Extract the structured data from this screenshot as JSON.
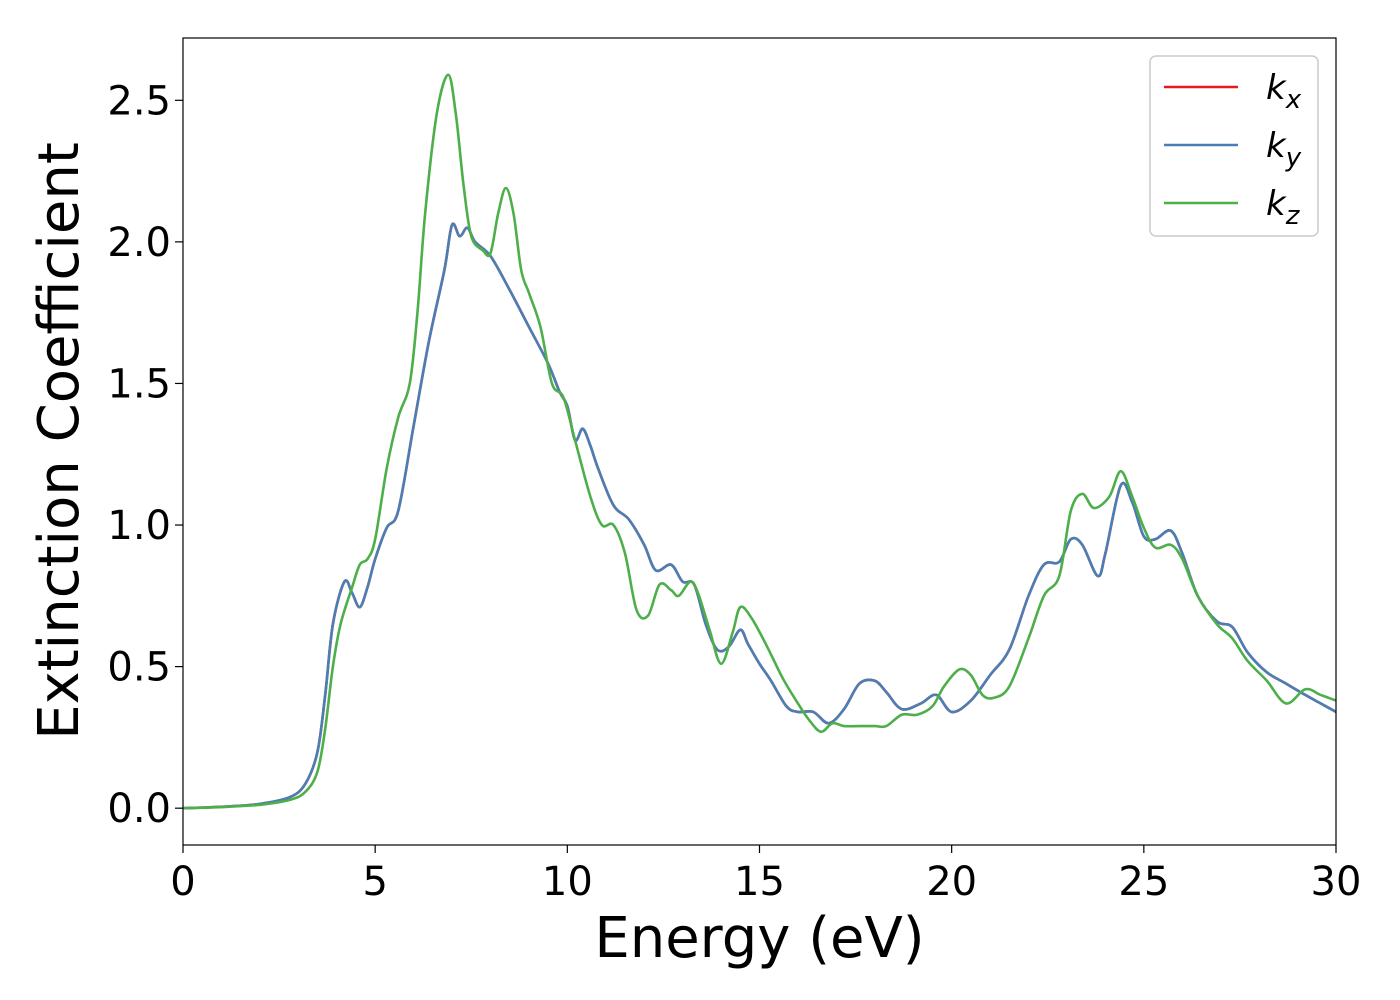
{
  "chart_data": {
    "type": "line",
    "xlabel": "Energy (eV)",
    "ylabel": "Extinction Coefficient",
    "xlim": [
      0,
      30
    ],
    "ylim": [
      -0.13,
      2.72
    ],
    "xticks": [
      0,
      5,
      10,
      15,
      20,
      25,
      30
    ],
    "yticks": [
      0.0,
      0.5,
      1.0,
      1.5,
      2.0,
      2.5
    ],
    "xtick_labels": [
      "0",
      "5",
      "10",
      "15",
      "20",
      "25",
      "30"
    ],
    "ytick_labels": [
      "0.0",
      "0.5",
      "1.0",
      "1.5",
      "2.0",
      "2.5"
    ],
    "grid": false,
    "legend": "top-right",
    "series": [
      {
        "name": "k_x",
        "label_base": "k",
        "label_sub": "x",
        "color": "#e41a1c",
        "points": [
          [
            0,
            0
          ],
          [
            1,
            0.005
          ],
          [
            2,
            0.015
          ],
          [
            2.8,
            0.04
          ],
          [
            3.2,
            0.09
          ],
          [
            3.5,
            0.2
          ],
          [
            3.7,
            0.4
          ],
          [
            3.9,
            0.65
          ],
          [
            4.2,
            0.8
          ],
          [
            4.4,
            0.76
          ],
          [
            4.6,
            0.71
          ],
          [
            4.8,
            0.78
          ],
          [
            5.0,
            0.88
          ],
          [
            5.3,
            0.99
          ],
          [
            5.6,
            1.05
          ],
          [
            6.0,
            1.35
          ],
          [
            6.4,
            1.65
          ],
          [
            6.8,
            1.9
          ],
          [
            7.0,
            2.06
          ],
          [
            7.2,
            2.02
          ],
          [
            7.4,
            2.05
          ],
          [
            7.6,
            2.0
          ],
          [
            8.0,
            1.95
          ],
          [
            8.5,
            1.83
          ],
          [
            9.0,
            1.7
          ],
          [
            9.5,
            1.57
          ],
          [
            9.8,
            1.47
          ],
          [
            10.0,
            1.42
          ],
          [
            10.2,
            1.3
          ],
          [
            10.4,
            1.34
          ],
          [
            10.6,
            1.28
          ],
          [
            10.8,
            1.2
          ],
          [
            11.2,
            1.07
          ],
          [
            11.6,
            1.02
          ],
          [
            12.0,
            0.93
          ],
          [
            12.3,
            0.84
          ],
          [
            12.7,
            0.86
          ],
          [
            13.0,
            0.8
          ],
          [
            13.3,
            0.79
          ],
          [
            13.6,
            0.65
          ],
          [
            13.9,
            0.56
          ],
          [
            14.2,
            0.57
          ],
          [
            14.5,
            0.63
          ],
          [
            14.7,
            0.58
          ],
          [
            15.0,
            0.51
          ],
          [
            15.3,
            0.45
          ],
          [
            15.7,
            0.36
          ],
          [
            16.0,
            0.34
          ],
          [
            16.4,
            0.34
          ],
          [
            16.8,
            0.3
          ],
          [
            17.2,
            0.35
          ],
          [
            17.6,
            0.44
          ],
          [
            18.0,
            0.45
          ],
          [
            18.3,
            0.41
          ],
          [
            18.7,
            0.35
          ],
          [
            19.2,
            0.37
          ],
          [
            19.6,
            0.4
          ],
          [
            20.0,
            0.34
          ],
          [
            20.5,
            0.38
          ],
          [
            21.0,
            0.47
          ],
          [
            21.5,
            0.56
          ],
          [
            22.0,
            0.75
          ],
          [
            22.4,
            0.86
          ],
          [
            22.8,
            0.87
          ],
          [
            23.1,
            0.95
          ],
          [
            23.4,
            0.93
          ],
          [
            23.8,
            0.82
          ],
          [
            24.0,
            0.9
          ],
          [
            24.4,
            1.14
          ],
          [
            24.7,
            1.08
          ],
          [
            25.0,
            0.96
          ],
          [
            25.3,
            0.95
          ],
          [
            25.7,
            0.98
          ],
          [
            26.0,
            0.9
          ],
          [
            26.4,
            0.75
          ],
          [
            26.9,
            0.66
          ],
          [
            27.3,
            0.64
          ],
          [
            27.7,
            0.55
          ],
          [
            28.2,
            0.48
          ],
          [
            28.7,
            0.44
          ],
          [
            29.2,
            0.4
          ],
          [
            29.6,
            0.37
          ],
          [
            30,
            0.34
          ]
        ]
      },
      {
        "name": "k_y",
        "label_base": "k",
        "label_sub": "y",
        "color": "#4a7fb5",
        "points": [
          [
            0,
            0
          ],
          [
            1,
            0.005
          ],
          [
            2,
            0.015
          ],
          [
            2.8,
            0.04
          ],
          [
            3.2,
            0.09
          ],
          [
            3.5,
            0.2
          ],
          [
            3.7,
            0.4
          ],
          [
            3.9,
            0.65
          ],
          [
            4.2,
            0.8
          ],
          [
            4.4,
            0.76
          ],
          [
            4.6,
            0.71
          ],
          [
            4.8,
            0.78
          ],
          [
            5.0,
            0.88
          ],
          [
            5.3,
            0.99
          ],
          [
            5.6,
            1.05
          ],
          [
            6.0,
            1.35
          ],
          [
            6.4,
            1.65
          ],
          [
            6.8,
            1.9
          ],
          [
            7.0,
            2.06
          ],
          [
            7.2,
            2.02
          ],
          [
            7.4,
            2.05
          ],
          [
            7.6,
            2.0
          ],
          [
            8.0,
            1.95
          ],
          [
            8.5,
            1.83
          ],
          [
            9.0,
            1.7
          ],
          [
            9.5,
            1.57
          ],
          [
            9.8,
            1.47
          ],
          [
            10.0,
            1.42
          ],
          [
            10.2,
            1.3
          ],
          [
            10.4,
            1.34
          ],
          [
            10.6,
            1.28
          ],
          [
            10.8,
            1.2
          ],
          [
            11.2,
            1.07
          ],
          [
            11.6,
            1.02
          ],
          [
            12.0,
            0.93
          ],
          [
            12.3,
            0.84
          ],
          [
            12.7,
            0.86
          ],
          [
            13.0,
            0.8
          ],
          [
            13.3,
            0.79
          ],
          [
            13.6,
            0.65
          ],
          [
            13.9,
            0.56
          ],
          [
            14.2,
            0.57
          ],
          [
            14.5,
            0.63
          ],
          [
            14.7,
            0.58
          ],
          [
            15.0,
            0.51
          ],
          [
            15.3,
            0.45
          ],
          [
            15.7,
            0.36
          ],
          [
            16.0,
            0.34
          ],
          [
            16.4,
            0.34
          ],
          [
            16.8,
            0.3
          ],
          [
            17.2,
            0.35
          ],
          [
            17.6,
            0.44
          ],
          [
            18.0,
            0.45
          ],
          [
            18.3,
            0.41
          ],
          [
            18.7,
            0.35
          ],
          [
            19.2,
            0.37
          ],
          [
            19.6,
            0.4
          ],
          [
            20.0,
            0.34
          ],
          [
            20.5,
            0.38
          ],
          [
            21.0,
            0.47
          ],
          [
            21.5,
            0.56
          ],
          [
            22.0,
            0.75
          ],
          [
            22.4,
            0.86
          ],
          [
            22.8,
            0.87
          ],
          [
            23.1,
            0.95
          ],
          [
            23.4,
            0.93
          ],
          [
            23.8,
            0.82
          ],
          [
            24.0,
            0.9
          ],
          [
            24.4,
            1.14
          ],
          [
            24.7,
            1.08
          ],
          [
            25.0,
            0.96
          ],
          [
            25.3,
            0.95
          ],
          [
            25.7,
            0.98
          ],
          [
            26.0,
            0.9
          ],
          [
            26.4,
            0.75
          ],
          [
            26.9,
            0.66
          ],
          [
            27.3,
            0.64
          ],
          [
            27.7,
            0.55
          ],
          [
            28.2,
            0.48
          ],
          [
            28.7,
            0.44
          ],
          [
            29.2,
            0.4
          ],
          [
            29.6,
            0.37
          ],
          [
            30,
            0.34
          ]
        ]
      },
      {
        "name": "k_z",
        "label_base": "k",
        "label_sub": "z",
        "color": "#4daf4a",
        "points": [
          [
            0,
            0
          ],
          [
            1,
            0.004
          ],
          [
            2,
            0.012
          ],
          [
            2.8,
            0.03
          ],
          [
            3.2,
            0.06
          ],
          [
            3.5,
            0.13
          ],
          [
            3.7,
            0.28
          ],
          [
            3.9,
            0.5
          ],
          [
            4.1,
            0.65
          ],
          [
            4.4,
            0.78
          ],
          [
            4.6,
            0.86
          ],
          [
            4.8,
            0.88
          ],
          [
            5.0,
            0.95
          ],
          [
            5.3,
            1.2
          ],
          [
            5.6,
            1.38
          ],
          [
            5.9,
            1.5
          ],
          [
            6.1,
            1.75
          ],
          [
            6.3,
            2.1
          ],
          [
            6.6,
            2.45
          ],
          [
            6.9,
            2.59
          ],
          [
            7.1,
            2.45
          ],
          [
            7.3,
            2.2
          ],
          [
            7.5,
            2.02
          ],
          [
            7.8,
            1.97
          ],
          [
            8.0,
            1.96
          ],
          [
            8.2,
            2.1
          ],
          [
            8.4,
            2.19
          ],
          [
            8.6,
            2.1
          ],
          [
            8.8,
            1.9
          ],
          [
            9.0,
            1.82
          ],
          [
            9.3,
            1.7
          ],
          [
            9.6,
            1.5
          ],
          [
            9.9,
            1.45
          ],
          [
            10.2,
            1.3
          ],
          [
            10.6,
            1.1
          ],
          [
            10.9,
            1.0
          ],
          [
            11.2,
            1.0
          ],
          [
            11.5,
            0.9
          ],
          [
            11.8,
            0.7
          ],
          [
            12.1,
            0.68
          ],
          [
            12.4,
            0.79
          ],
          [
            12.7,
            0.77
          ],
          [
            12.9,
            0.75
          ],
          [
            13.2,
            0.8
          ],
          [
            13.4,
            0.76
          ],
          [
            13.7,
            0.63
          ],
          [
            14.0,
            0.51
          ],
          [
            14.3,
            0.62
          ],
          [
            14.5,
            0.71
          ],
          [
            14.8,
            0.67
          ],
          [
            15.2,
            0.57
          ],
          [
            15.6,
            0.46
          ],
          [
            16.0,
            0.37
          ],
          [
            16.3,
            0.31
          ],
          [
            16.6,
            0.27
          ],
          [
            16.9,
            0.3
          ],
          [
            17.2,
            0.29
          ],
          [
            17.6,
            0.29
          ],
          [
            18.0,
            0.29
          ],
          [
            18.3,
            0.29
          ],
          [
            18.7,
            0.33
          ],
          [
            19.1,
            0.33
          ],
          [
            19.5,
            0.36
          ],
          [
            19.8,
            0.43
          ],
          [
            20.2,
            0.49
          ],
          [
            20.5,
            0.47
          ],
          [
            20.8,
            0.4
          ],
          [
            21.1,
            0.39
          ],
          [
            21.5,
            0.43
          ],
          [
            22.0,
            0.6
          ],
          [
            22.4,
            0.75
          ],
          [
            22.8,
            0.82
          ],
          [
            23.1,
            1.05
          ],
          [
            23.4,
            1.11
          ],
          [
            23.7,
            1.06
          ],
          [
            24.1,
            1.1
          ],
          [
            24.4,
            1.19
          ],
          [
            24.7,
            1.1
          ],
          [
            25.0,
            0.99
          ],
          [
            25.3,
            0.92
          ],
          [
            25.7,
            0.93
          ],
          [
            26.0,
            0.88
          ],
          [
            26.4,
            0.75
          ],
          [
            26.9,
            0.65
          ],
          [
            27.3,
            0.6
          ],
          [
            27.7,
            0.52
          ],
          [
            28.2,
            0.45
          ],
          [
            28.7,
            0.37
          ],
          [
            29.2,
            0.42
          ],
          [
            29.6,
            0.4
          ],
          [
            30,
            0.38
          ]
        ]
      }
    ]
  }
}
